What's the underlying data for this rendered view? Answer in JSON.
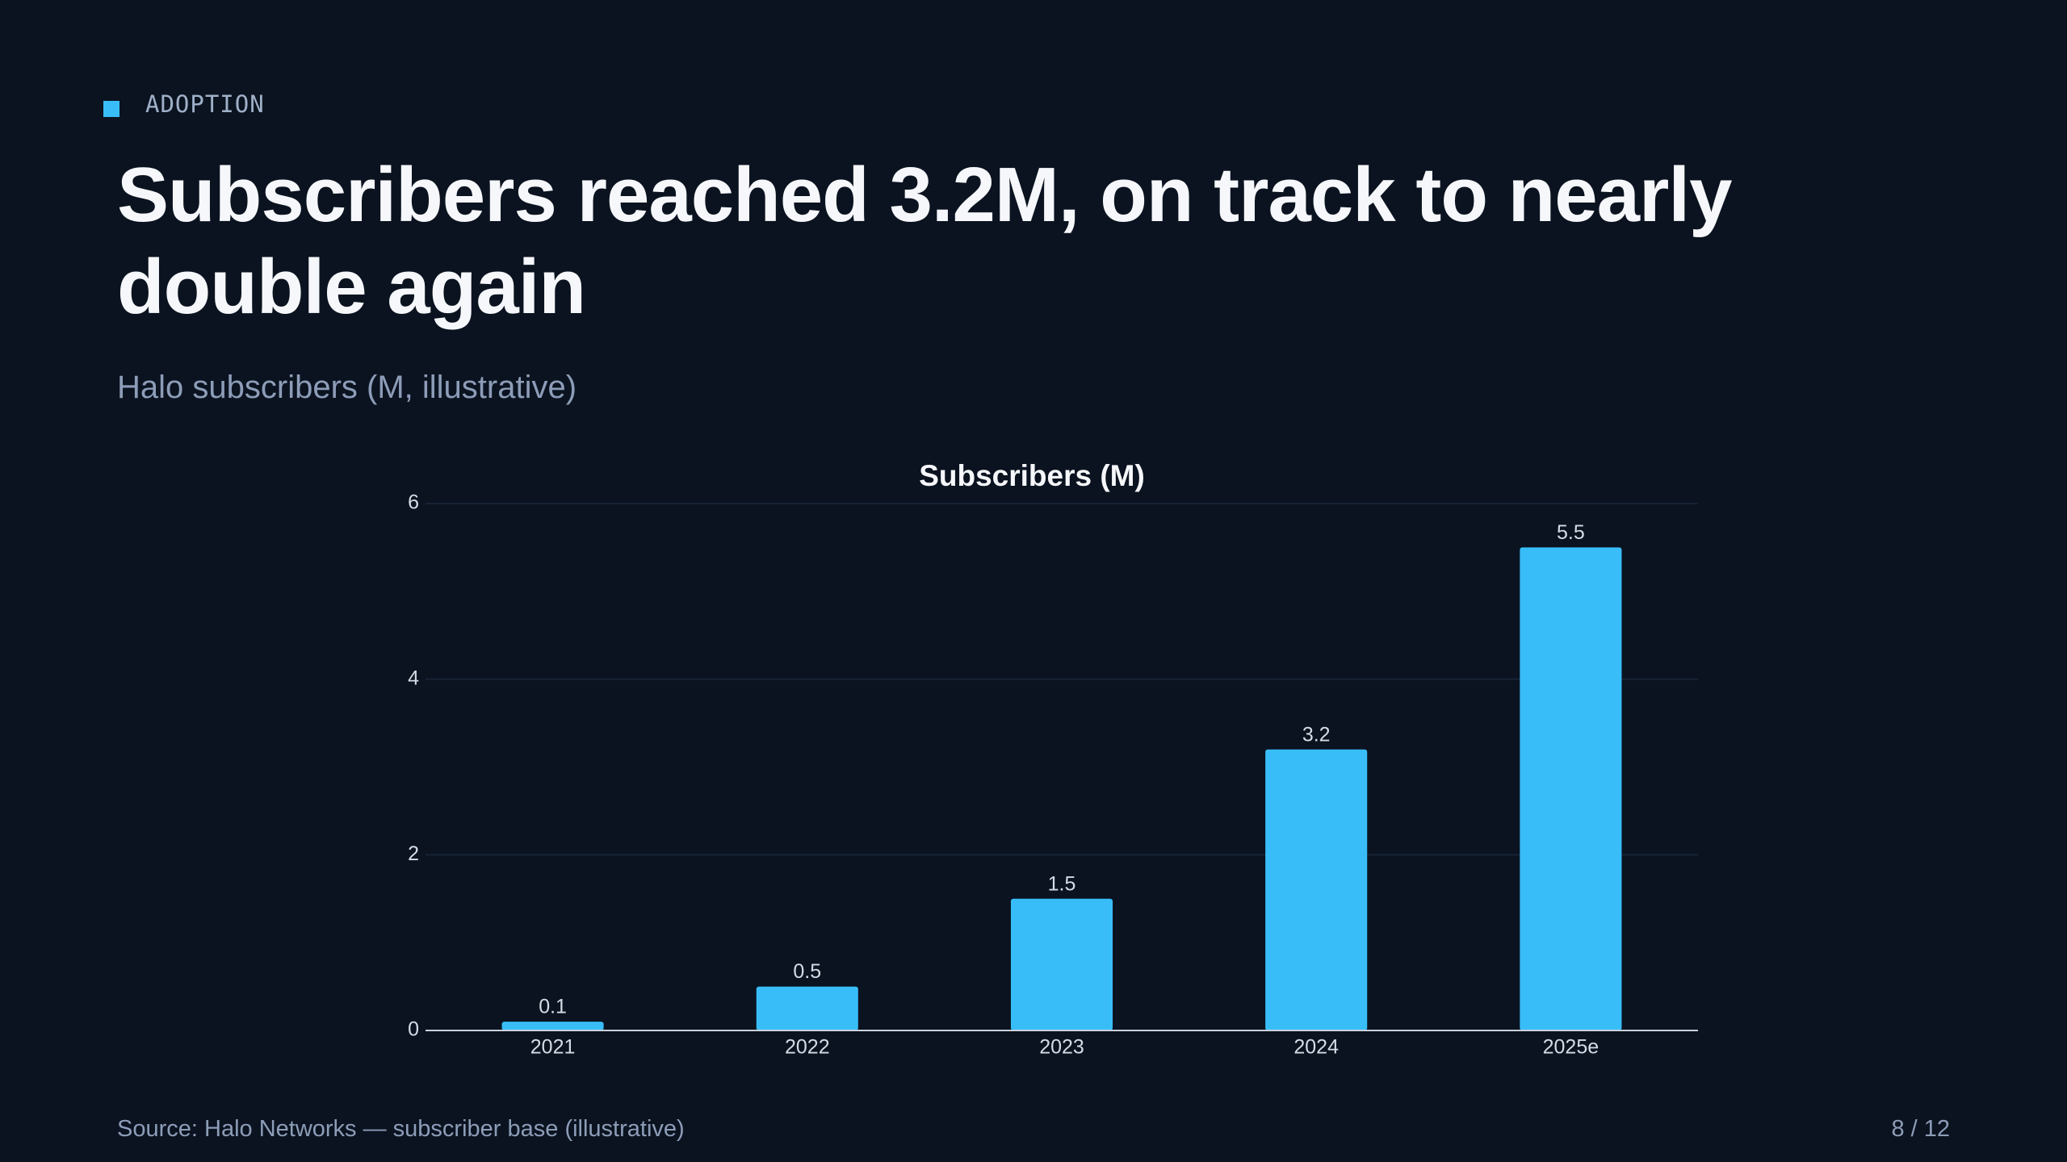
{
  "eyebrow": "ADOPTION",
  "headline": "Subscribers reached 3.2M, on track to nearly double again",
  "subtitle": "Halo subscribers (M, illustrative)",
  "chart_data": {
    "type": "bar",
    "title": "Subscribers (M)",
    "categories": [
      "2021",
      "2022",
      "2023",
      "2024",
      "2025e"
    ],
    "values": [
      0.1,
      0.5,
      1.5,
      3.2,
      5.5
    ],
    "color": "#38bdf8",
    "ylim": [
      0,
      6
    ],
    "yticks": [
      0,
      2,
      4,
      6
    ],
    "grid": true
  },
  "footer": {
    "source": "Source: Halo Networks — subscriber base (illustrative)",
    "page": "8 / 12"
  }
}
